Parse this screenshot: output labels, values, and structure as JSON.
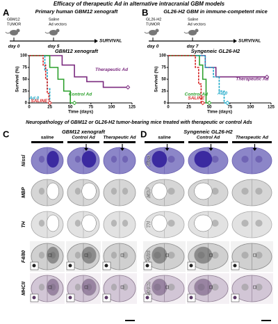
{
  "title": "Efficacy of therapeutic Ad in alternative intracranial GBM models",
  "panel_a": {
    "label": "A",
    "title": "Primary human GBM12 xenograft",
    "tumor": [
      "GBM12",
      "TUMOR"
    ],
    "treatment": [
      "Saline",
      "Ad vectors"
    ],
    "survival": "SURVIVAL",
    "day_start": "day 0",
    "day_treat": "day 5"
  },
  "panel_b": {
    "label": "B",
    "title": "GL26-H2 GBM in immune-competent mice",
    "tumor": [
      "GL26-H2",
      "TUMOR"
    ],
    "treatment": [
      "Saline",
      "Ad vectors"
    ],
    "survival": "SURVIVAL",
    "day_start": "day 0",
    "day_treat": "day 7"
  },
  "chart_data": [
    {
      "type": "line",
      "title": "GBM12 xenograft",
      "xlabel": "Time (days)",
      "ylabel": "Survival (%)",
      "xlim": [
        0,
        125
      ],
      "ylim": [
        0,
        100
      ],
      "xticks": [
        0,
        25,
        50,
        75,
        100,
        125
      ],
      "yticks": [
        0,
        25,
        50,
        75,
        100
      ],
      "series": [
        {
          "name": "Therapeutic Ad",
          "color": "#7b2a7f",
          "x": [
            0,
            40,
            40,
            55,
            55,
            70,
            70,
            90,
            90,
            120
          ],
          "values": [
            100,
            100,
            80,
            80,
            55,
            55,
            45,
            45,
            33,
            33
          ]
        },
        {
          "name": "Control Ad",
          "color": "#2ca02c",
          "x": [
            0,
            25,
            25,
            35,
            35,
            42,
            42,
            50,
            50,
            55
          ],
          "values": [
            100,
            100,
            75,
            75,
            50,
            50,
            25,
            25,
            0,
            0
          ]
        },
        {
          "name": "Ad.0",
          "color": "#1aa7c7",
          "x": [
            0,
            19,
            19,
            22,
            22,
            25,
            25
          ],
          "values": [
            100,
            100,
            70,
            70,
            30,
            30,
            0
          ]
        },
        {
          "name": "SALINE",
          "color": "#d62020",
          "x": [
            0,
            17,
            17,
            20,
            20,
            22,
            22,
            24,
            24,
            25
          ],
          "values": [
            100,
            100,
            80,
            80,
            50,
            50,
            20,
            20,
            0,
            0
          ]
        }
      ]
    },
    {
      "type": "line",
      "title": "Syngeneic GL26-H2",
      "xlabel": "Time (days)",
      "ylabel": "Survival (%)",
      "xlim": [
        0,
        125
      ],
      "ylim": [
        0,
        100
      ],
      "xticks": [
        0,
        25,
        50,
        75,
        100,
        125
      ],
      "yticks": [
        0,
        25,
        50,
        75,
        100
      ],
      "series": [
        {
          "name": "Therapeutic Ad",
          "color": "#7b2a7f",
          "x": [
            0,
            45,
            45,
            58,
            58,
            120
          ],
          "values": [
            100,
            100,
            75,
            75,
            55,
            55
          ]
        },
        {
          "name": "Control Ad",
          "color": "#2ca02c",
          "x": [
            0,
            38,
            38,
            42,
            42,
            46,
            46,
            50
          ],
          "values": [
            100,
            100,
            80,
            80,
            50,
            50,
            0,
            0
          ]
        },
        {
          "name": "Ad.0",
          "color": "#1aa7c7",
          "x": [
            0,
            45,
            45,
            55,
            55,
            62,
            62,
            68,
            68,
            72
          ],
          "values": [
            100,
            100,
            75,
            75,
            55,
            55,
            25,
            25,
            0,
            0
          ]
        },
        {
          "name": "SALINE",
          "color": "#d62020",
          "x": [
            0,
            33,
            33,
            37,
            37,
            40,
            40,
            42
          ],
          "values": [
            100,
            100,
            75,
            75,
            40,
            40,
            0,
            0
          ]
        }
      ]
    }
  ],
  "histology": {
    "title": [
      "Neuropathology of GBM12 or GL26-H2 tumor-bearing mice treated with therapeutic or control Ads"
    ],
    "panels": [
      {
        "label": "C",
        "title": "GBM12 xenograft",
        "columns": [
          "saline",
          "Control Ad",
          "Therapeutic Ad"
        ],
        "rows": [
          "Nissl",
          "MBP",
          "TH",
          "F4/80",
          "MHCII"
        ]
      },
      {
        "label": "D",
        "title": "Syngeneic GL26-H2",
        "columns": [
          "saline",
          "Control Ad",
          "Therapeutic Ad"
        ],
        "rows": [
          "Nissl",
          "MBP",
          "TH",
          "F4/80",
          "MHCII"
        ]
      }
    ]
  }
}
